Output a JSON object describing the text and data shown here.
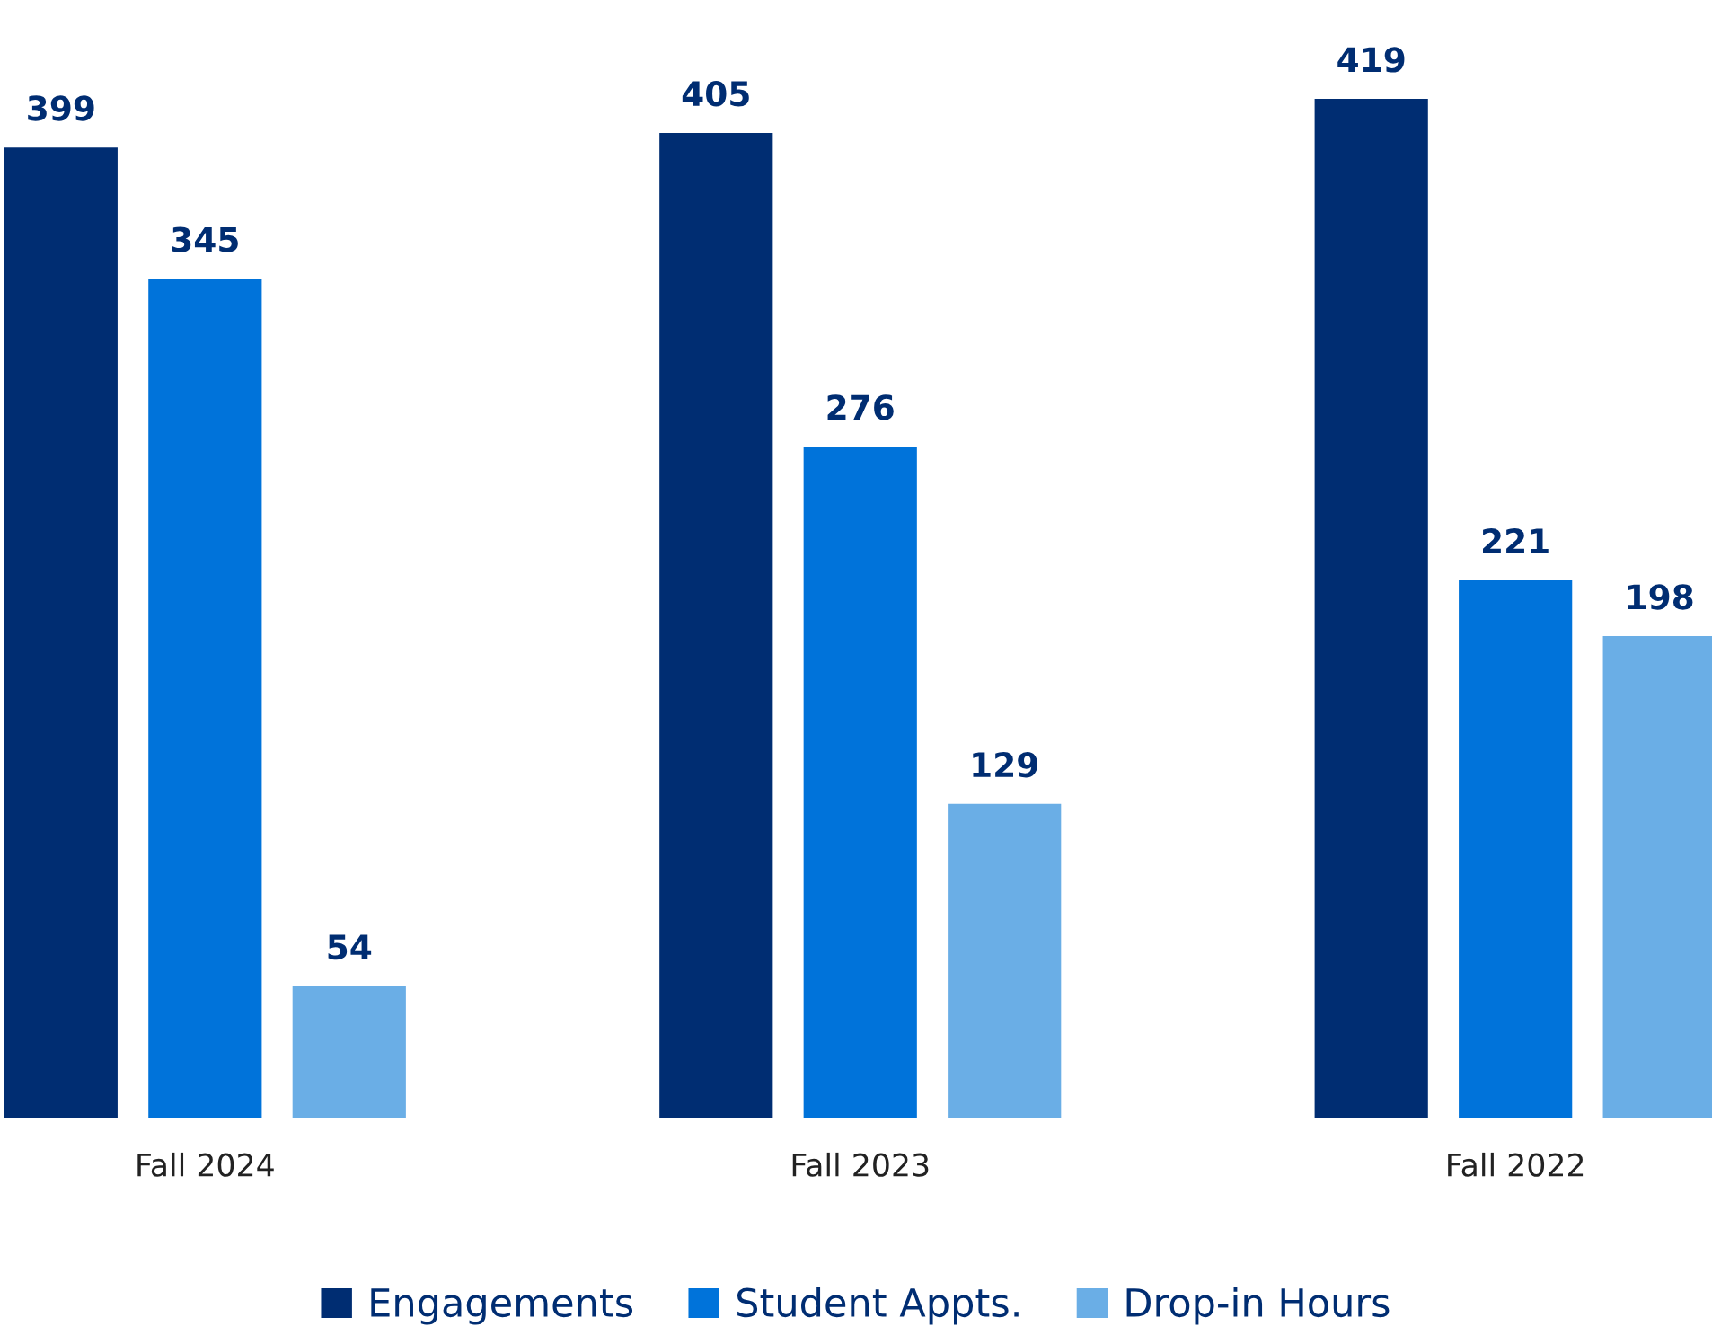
{
  "chart_data": {
    "type": "bar",
    "categories": [
      "Fall 2024",
      "Fall 2023",
      "Fall 2022"
    ],
    "series": [
      {
        "name": "Engagements",
        "color": "#002d72",
        "values": [
          399,
          405,
          419
        ]
      },
      {
        "name": "Student Appts.",
        "color": "#0073da",
        "values": [
          345,
          276,
          221
        ]
      },
      {
        "name": "Drop-in Hours",
        "color": "#6aaee6",
        "values": [
          54,
          129,
          198
        ]
      }
    ],
    "data_labels": true,
    "legend": "bottom",
    "grid": false
  }
}
